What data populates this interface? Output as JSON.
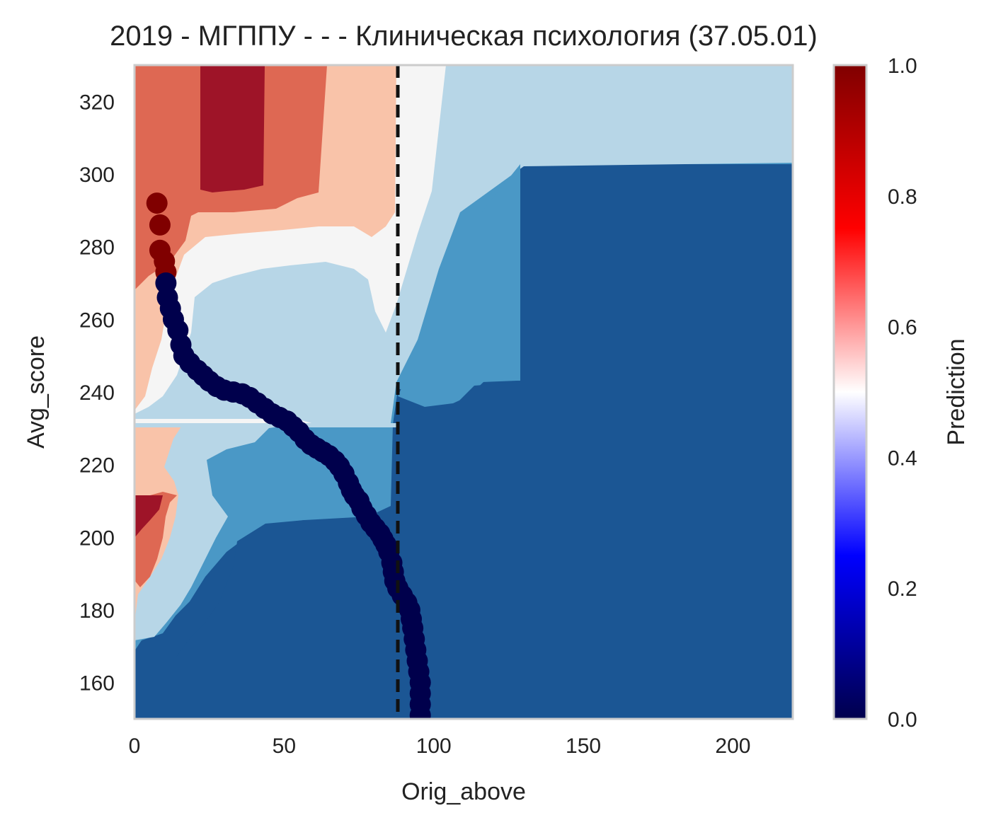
{
  "chart_data": {
    "type": "heatmap",
    "title": "2019 - МГППУ - - - Клиническая психология (37.05.01)",
    "xlabel": "Orig_above",
    "ylabel": "Avg_score",
    "xlim": [
      0,
      220
    ],
    "ylim": [
      150,
      330
    ],
    "xticks": [
      "0",
      "50",
      "100",
      "150",
      "200"
    ],
    "xtick_values": [
      0,
      50,
      100,
      150,
      200
    ],
    "yticks": [
      "160",
      "180",
      "200",
      "220",
      "240",
      "260",
      "280",
      "300",
      "320"
    ],
    "ytick_values": [
      160,
      180,
      200,
      220,
      240,
      260,
      280,
      300,
      320
    ],
    "grid": false,
    "colorbar": {
      "label": "Prediction",
      "range": [
        0,
        1
      ],
      "ticks": [
        "0.0",
        "0.2",
        "0.4",
        "0.6",
        "0.8",
        "1.0"
      ],
      "tick_values": [
        0,
        0.2,
        0.4,
        0.6,
        0.8,
        1.0
      ],
      "colormap": "seismic"
    },
    "contour_levels": [
      {
        "range": [
          0.0,
          0.2
        ],
        "color": "#1b5694"
      },
      {
        "range": [
          0.2,
          0.35
        ],
        "color": "#4a98c6"
      },
      {
        "range": [
          0.35,
          0.45
        ],
        "color": "#b7d6e7"
      },
      {
        "range": [
          0.45,
          0.55
        ],
        "color": "#f5f5f5"
      },
      {
        "range": [
          0.55,
          0.7
        ],
        "color": "#f9c3a9"
      },
      {
        "range": [
          0.7,
          0.85
        ],
        "color": "#de6853"
      },
      {
        "range": [
          0.85,
          1.0
        ],
        "color": "#9e1428"
      }
    ],
    "threshold_line": {
      "x": 88,
      "style": "dashed",
      "color": "#111111"
    },
    "scatter": {
      "name": "",
      "points": [
        [
          7.5,
          292,
          1
        ],
        [
          8.5,
          286,
          1
        ],
        [
          8.5,
          279,
          1
        ],
        [
          10,
          276,
          1
        ],
        [
          10.5,
          273,
          1
        ],
        [
          10.5,
          270,
          0
        ],
        [
          11,
          266,
          0
        ],
        [
          12,
          263,
          0
        ],
        [
          13,
          260,
          0
        ],
        [
          14.5,
          257,
          0
        ],
        [
          15.5,
          253,
          0
        ],
        [
          16.5,
          250,
          0
        ],
        [
          18.5,
          248,
          0
        ],
        [
          21,
          246,
          0
        ],
        [
          23,
          244.5,
          0
        ],
        [
          25,
          243,
          0
        ],
        [
          27.5,
          241.5,
          0
        ],
        [
          30,
          240.5,
          0
        ],
        [
          33,
          240,
          0
        ],
        [
          36,
          239.5,
          0
        ],
        [
          38.5,
          238.5,
          0
        ],
        [
          41,
          237,
          0
        ],
        [
          43.5,
          235.5,
          0
        ],
        [
          46,
          234,
          0
        ],
        [
          48.5,
          233,
          0
        ],
        [
          51,
          232,
          0
        ],
        [
          53,
          230.5,
          0
        ],
        [
          55,
          229,
          0
        ],
        [
          57,
          227,
          0
        ],
        [
          59,
          225.5,
          0
        ],
        [
          61,
          224.5,
          0
        ],
        [
          63,
          223.5,
          0
        ],
        [
          65,
          222.5,
          0
        ],
        [
          67,
          221,
          0
        ],
        [
          68.5,
          219.5,
          0
        ],
        [
          70,
          217.5,
          0
        ],
        [
          71.5,
          215,
          0
        ],
        [
          72.5,
          213,
          0
        ],
        [
          73.5,
          211.5,
          0
        ],
        [
          75,
          210,
          0
        ],
        [
          76,
          208,
          0
        ],
        [
          77.5,
          206,
          0
        ],
        [
          79,
          204,
          0
        ],
        [
          80.5,
          202.5,
          0
        ],
        [
          82,
          201,
          0
        ],
        [
          83,
          199.5,
          0
        ],
        [
          84,
          198,
          0
        ],
        [
          85,
          196,
          0
        ],
        [
          86,
          193,
          0
        ],
        [
          86.5,
          190.5,
          0
        ],
        [
          87,
          188,
          0
        ],
        [
          88,
          186,
          0
        ],
        [
          89.5,
          184,
          0
        ],
        [
          91,
          182,
          0
        ],
        [
          92,
          180,
          0
        ],
        [
          92.5,
          177.5,
          0
        ],
        [
          93,
          175,
          0
        ],
        [
          93.5,
          172,
          0
        ],
        [
          94,
          169,
          0
        ],
        [
          94.5,
          166,
          0
        ],
        [
          95,
          163,
          0
        ],
        [
          95.5,
          160,
          0
        ],
        [
          95.5,
          157,
          0
        ],
        [
          95.5,
          154,
          0
        ],
        [
          95.5,
          151,
          0
        ]
      ],
      "colors": {
        "1": "#800000",
        "0": "#00004c"
      }
    }
  }
}
